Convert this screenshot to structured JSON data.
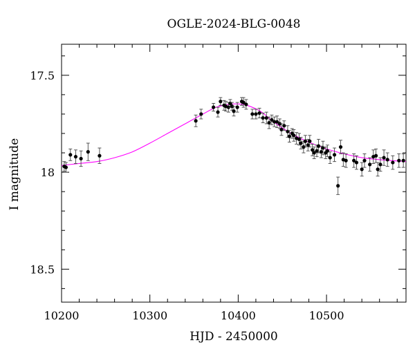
{
  "chart_data": {
    "type": "scatter",
    "title": "OGLE-2024-BLG-0048",
    "xlabel": "HJD - 2450000",
    "ylabel": "I magnitude",
    "xlim": [
      10200,
      10590
    ],
    "ylim": [
      17.34,
      18.67
    ],
    "y_inverted": true,
    "x_ticks": [
      10200,
      10300,
      10400,
      10500
    ],
    "y_ticks": [
      17.5,
      18,
      18.5
    ],
    "x_tick_labels": [
      "10200",
      "10300",
      "10400",
      "10500"
    ],
    "y_tick_labels": [
      "17.5",
      "18",
      "18.5"
    ],
    "grid": false,
    "colors": {
      "points": "#000000",
      "model": "#ff00ff"
    },
    "model": {
      "name": "",
      "x": [
        10200,
        10220,
        10240,
        10260,
        10280,
        10300,
        10320,
        10340,
        10360,
        10375,
        10390,
        10400,
        10410,
        10425,
        10440,
        10460,
        10480,
        10500,
        10520,
        10540,
        10560,
        10590
      ],
      "y": [
        17.965,
        17.955,
        17.945,
        17.925,
        17.895,
        17.85,
        17.8,
        17.75,
        17.7,
        17.665,
        17.65,
        17.648,
        17.655,
        17.685,
        17.74,
        17.8,
        17.845,
        17.88,
        17.905,
        17.925,
        17.935,
        17.945
      ]
    },
    "series": [
      {
        "name": "",
        "x": [
          10203,
          10205,
          10210,
          10216,
          10222,
          10230,
          10243,
          10352,
          10358,
          10372,
          10377,
          10380,
          10384,
          10386,
          10389,
          10391,
          10393,
          10395,
          10399,
          10404,
          10406,
          10409,
          10416,
          10420,
          10424,
          10428,
          10432,
          10435,
          10438,
          10441,
          10444,
          10447,
          10449,
          10452,
          10456,
          10458,
          10461,
          10463,
          10466,
          10469,
          10471,
          10474,
          10476,
          10479,
          10481,
          10484,
          10486,
          10489,
          10491,
          10494,
          10496,
          10499,
          10501,
          10504,
          10509,
          10513,
          10516,
          10519,
          10522,
          10531,
          10534,
          10540,
          10543,
          10549,
          10553,
          10556,
          10558,
          10561,
          10565,
          10569,
          10575,
          10582,
          10587
        ],
        "y": [
          17.97,
          17.975,
          17.91,
          17.92,
          17.93,
          17.895,
          17.915,
          17.735,
          17.7,
          17.665,
          17.69,
          17.635,
          17.655,
          17.66,
          17.665,
          17.645,
          17.66,
          17.685,
          17.665,
          17.635,
          17.64,
          17.65,
          17.7,
          17.7,
          17.695,
          17.72,
          17.72,
          17.745,
          17.73,
          17.74,
          17.74,
          17.75,
          17.78,
          17.76,
          17.79,
          17.815,
          17.8,
          17.81,
          17.825,
          17.83,
          17.85,
          17.87,
          17.84,
          17.86,
          17.84,
          17.885,
          17.9,
          17.89,
          17.865,
          17.895,
          17.875,
          17.9,
          17.89,
          17.925,
          17.91,
          18.07,
          17.87,
          17.935,
          17.94,
          17.94,
          17.95,
          17.985,
          17.94,
          17.96,
          17.92,
          17.915,
          17.985,
          17.96,
          17.925,
          17.935,
          17.95,
          17.94,
          17.94
        ],
        "errors": [
          0.025,
          0.025,
          0.03,
          0.035,
          0.04,
          0.045,
          0.04,
          0.03,
          0.025,
          0.02,
          0.025,
          0.02,
          0.025,
          0.025,
          0.025,
          0.02,
          0.02,
          0.025,
          0.025,
          0.02,
          0.025,
          0.025,
          0.025,
          0.025,
          0.025,
          0.025,
          0.03,
          0.03,
          0.025,
          0.025,
          0.03,
          0.025,
          0.03,
          0.025,
          0.03,
          0.03,
          0.025,
          0.03,
          0.03,
          0.03,
          0.03,
          0.03,
          0.03,
          0.03,
          0.03,
          0.03,
          0.03,
          0.03,
          0.035,
          0.03,
          0.035,
          0.03,
          0.03,
          0.03,
          0.035,
          0.045,
          0.035,
          0.035,
          0.035,
          0.035,
          0.035,
          0.035,
          0.035,
          0.035,
          0.035,
          0.035,
          0.035,
          0.035,
          0.04,
          0.035,
          0.035,
          0.035,
          0.035
        ]
      }
    ]
  }
}
